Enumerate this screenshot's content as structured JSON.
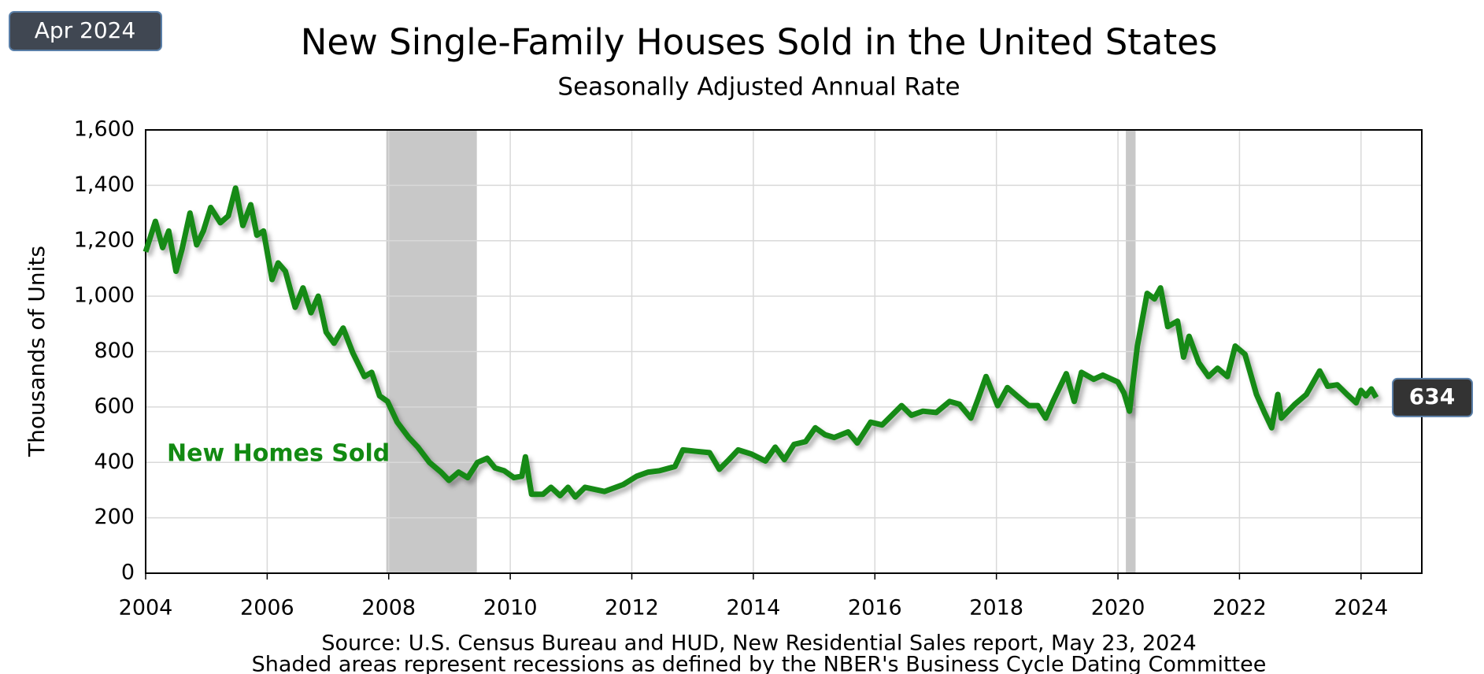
{
  "chart_data": {
    "type": "line",
    "title": "New Single-Family Houses Sold in the United States",
    "subtitle": "Seasonally Adjusted Annual Rate",
    "date_badge": "Apr 2024",
    "y_label": "Thousands of Units",
    "source": "Source:  U.S. Census Bureau and HUD, New Residential Sales report, May 23, 2024",
    "note": "Shaded areas represent recessions as defined by the NBER's Business Cycle Dating Committee",
    "xlim": [
      2004,
      2025
    ],
    "xticks": [
      2004,
      2006,
      2008,
      2010,
      2012,
      2014,
      2016,
      2018,
      2020,
      2022,
      2024
    ],
    "ylim": [
      0,
      1600
    ],
    "yticks": [
      0,
      {
        "value": 200,
        "label": "200"
      },
      400,
      600,
      800,
      {
        "value": 1000,
        "label": "1,000"
      },
      {
        "value": 1200,
        "label": "1,200"
      },
      {
        "value": 1400,
        "label": "1,400"
      },
      {
        "value": 1600,
        "label": "1,600"
      }
    ],
    "grid": true,
    "recessions": [
      [
        2007.96,
        2009.45
      ],
      [
        2020.13,
        2020.29
      ]
    ],
    "recession_color": "#c8c8c8",
    "series": [
      {
        "name": "New Homes Sold",
        "color": "#128a12",
        "x": [
          2004.0,
          2004.16,
          2004.28,
          2004.38,
          2004.5,
          2004.6,
          2004.73,
          2004.84,
          2004.95,
          2005.07,
          2005.23,
          2005.36,
          2005.48,
          2005.6,
          2005.73,
          2005.83,
          2005.94,
          2006.08,
          2006.18,
          2006.3,
          2006.46,
          2006.59,
          2006.72,
          2006.84,
          2006.97,
          2007.1,
          2007.25,
          2007.41,
          2007.6,
          2007.72,
          2007.85,
          2007.98,
          2008.14,
          2008.33,
          2008.48,
          2008.67,
          2008.86,
          2008.99,
          2009.15,
          2009.3,
          2009.46,
          2009.62,
          2009.75,
          2009.9,
          2010.06,
          2010.19,
          2010.25,
          2010.35,
          2010.54,
          2010.67,
          2010.82,
          2010.95,
          2011.07,
          2011.23,
          2011.55,
          2011.86,
          2012.08,
          2012.27,
          2012.46,
          2012.71,
          2012.84,
          2013.06,
          2013.28,
          2013.44,
          2013.6,
          2013.75,
          2013.97,
          2014.2,
          2014.36,
          2014.51,
          2014.67,
          2014.86,
          2015.02,
          2015.18,
          2015.33,
          2015.56,
          2015.71,
          2015.93,
          2016.12,
          2016.28,
          2016.44,
          2016.6,
          2016.79,
          2017.01,
          2017.23,
          2017.39,
          2017.58,
          2017.7,
          2017.83,
          2018.02,
          2018.18,
          2018.34,
          2018.53,
          2018.68,
          2018.81,
          2018.93,
          2019.15,
          2019.28,
          2019.4,
          2019.6,
          2019.75,
          2020.0,
          2020.1,
          2020.19,
          2020.32,
          2020.48,
          2020.6,
          2020.7,
          2020.82,
          2020.98,
          2021.08,
          2021.17,
          2021.33,
          2021.49,
          2021.64,
          2021.8,
          2021.93,
          2022.09,
          2022.28,
          2022.41,
          2022.53,
          2022.63,
          2022.69,
          2022.91,
          2023.1,
          2023.32,
          2023.45,
          2023.61,
          2023.77,
          2023.92,
          2024.0,
          2024.08,
          2024.17,
          2024.25
        ],
        "values": [
          1160,
          1270,
          1175,
          1235,
          1090,
          1170,
          1300,
          1185,
          1235,
          1320,
          1265,
          1290,
          1390,
          1255,
          1330,
          1220,
          1235,
          1060,
          1120,
          1090,
          960,
          1030,
          940,
          1000,
          870,
          830,
          885,
          795,
          710,
          725,
          640,
          620,
          545,
          490,
          455,
          400,
          365,
          335,
          365,
          345,
          400,
          415,
          380,
          370,
          345,
          350,
          420,
          285,
          285,
          310,
          280,
          310,
          275,
          310,
          295,
          320,
          350,
          365,
          370,
          385,
          445,
          440,
          435,
          375,
          410,
          445,
          430,
          405,
          455,
          410,
          465,
          475,
          525,
          500,
          490,
          510,
          470,
          545,
          535,
          570,
          605,
          570,
          585,
          580,
          620,
          610,
          560,
          630,
          710,
          605,
          670,
          640,
          605,
          605,
          560,
          620,
          720,
          620,
          725,
          700,
          715,
          690,
          650,
          585,
          820,
          1010,
          990,
          1030,
          890,
          910,
          780,
          855,
          760,
          710,
          740,
          710,
          820,
          790,
          645,
          580,
          525,
          645,
          560,
          610,
          645,
          730,
          675,
          680,
          645,
          615,
          660,
          640,
          665,
          634
        ]
      }
    ]
  }
}
